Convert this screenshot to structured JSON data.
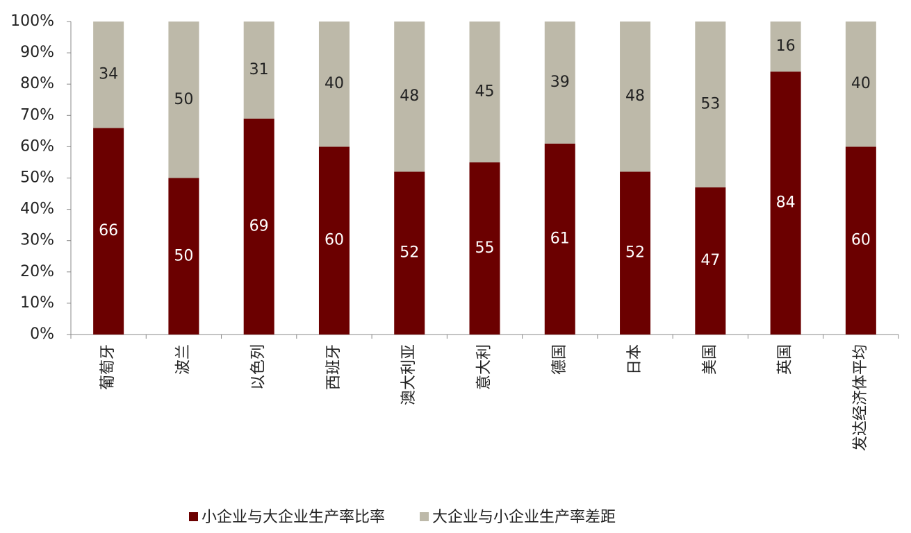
{
  "chart_data": {
    "type": "stacked-bar",
    "categories": [
      "葡萄牙",
      "波兰",
      "以色列",
      "西班牙",
      "澳大利亚",
      "意大利",
      "德国",
      "日本",
      "美国",
      "英国",
      "发达经济体平均"
    ],
    "series": [
      {
        "name": "小企业与大企业生产率比率",
        "color": "#6b0000",
        "values": [
          66,
          50,
          69,
          60,
          52,
          55,
          61,
          52,
          47,
          84,
          60
        ]
      },
      {
        "name": "大企业与小企业生产率差距",
        "color": "#bdb9a9",
        "values": [
          34,
          50,
          31,
          40,
          48,
          45,
          39,
          48,
          53,
          16,
          40
        ]
      }
    ],
    "ylim": [
      0,
      100
    ],
    "yticks": [
      {
        "value": 0,
        "label": "0%"
      },
      {
        "value": 10,
        "label": "10%"
      },
      {
        "value": 20,
        "label": "20%"
      },
      {
        "value": 30,
        "label": "30%"
      },
      {
        "value": 40,
        "label": "40%"
      },
      {
        "value": 50,
        "label": "50%"
      },
      {
        "value": 60,
        "label": "60%"
      },
      {
        "value": 70,
        "label": "70%"
      },
      {
        "value": 80,
        "label": "80%"
      },
      {
        "value": 90,
        "label": "90%"
      },
      {
        "value": 100,
        "label": "100%"
      }
    ],
    "legend": "bottom"
  }
}
